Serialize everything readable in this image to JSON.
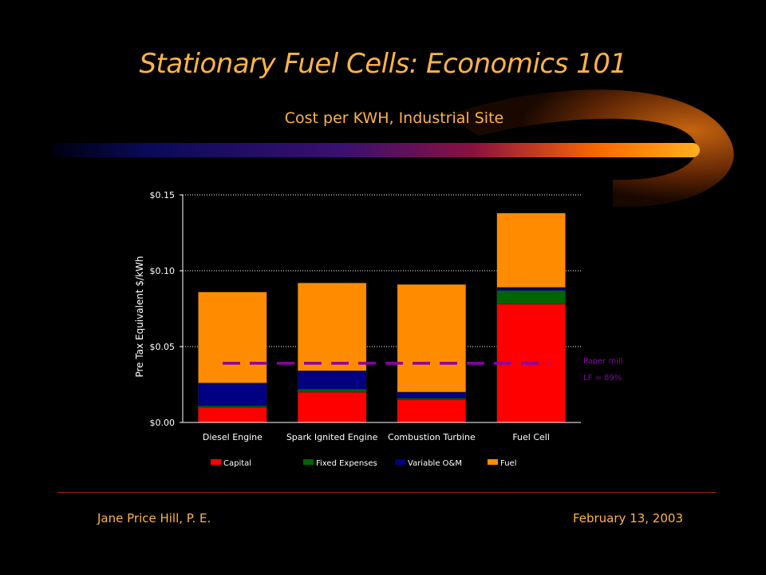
{
  "slide": {
    "title": "Stationary Fuel Cells:  Economics 101",
    "subtitle": "Cost per KWH, Industrial Site",
    "footer_left": "Jane Price Hill, P. E.",
    "footer_right": "February 13, 2003"
  },
  "chart_data": {
    "type": "bar",
    "stacked": true,
    "categories": [
      "Diesel Engine",
      "Spark Ignited Engine",
      "Combustion Turbine",
      "Fuel Cell"
    ],
    "series": [
      {
        "name": "Capital",
        "color": "#ff0000",
        "values": [
          0.01,
          0.02,
          0.015,
          0.078
        ]
      },
      {
        "name": "Fixed Expenses",
        "color": "#006400",
        "values": [
          0.001,
          0.002,
          0.001,
          0.009
        ]
      },
      {
        "name": "Variable O&M",
        "color": "#000080",
        "values": [
          0.015,
          0.012,
          0.004,
          0.002
        ]
      },
      {
        "name": "Fuel",
        "color": "#ff8c00",
        "values": [
          0.06,
          0.058,
          0.071,
          0.049
        ]
      }
    ],
    "ylabel": "Pre Tax Equivalent $/kWh",
    "ylim": [
      0,
      0.15
    ],
    "yticks": [
      0,
      0.05,
      0.1,
      0.15
    ],
    "ytick_labels": [
      "$0.00",
      "$0.05",
      "$0.10",
      "$0.15"
    ],
    "reference_line": {
      "value": 0.039,
      "color": "#8b00a8",
      "labels": [
        "Paper mill",
        "LF = 89%"
      ]
    },
    "grid": true,
    "legend_position": "bottom"
  }
}
